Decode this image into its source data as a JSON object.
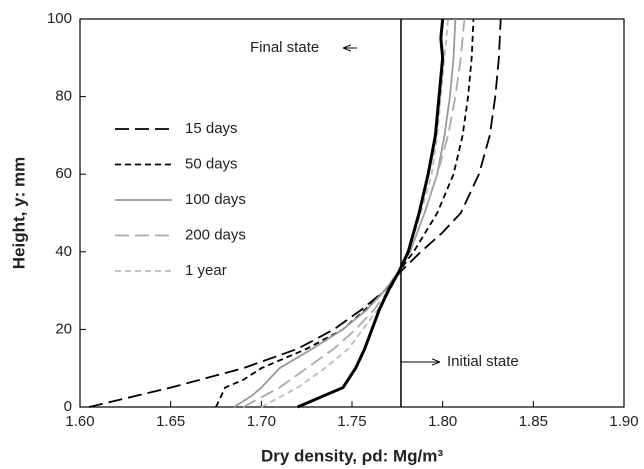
{
  "chart_data": {
    "type": "line",
    "xlabel": "Dry density, ρd: Mg/m³",
    "ylabel": "Height, y: mm",
    "xlim": [
      1.6,
      1.9
    ],
    "ylim": [
      0,
      100
    ],
    "xticks": [
      {
        "value": 1.6,
        "label": "1.60"
      },
      {
        "value": 1.65,
        "label": "1.65"
      },
      {
        "value": 1.7,
        "label": "1.70"
      },
      {
        "value": 1.75,
        "label": "1.75"
      },
      {
        "value": 1.8,
        "label": "1.80"
      },
      {
        "value": 1.85,
        "label": "1.85"
      },
      {
        "value": 1.9,
        "label": "1.90"
      }
    ],
    "yticks": [
      0,
      20,
      40,
      60,
      80,
      100
    ],
    "series": [
      {
        "name": "15 days",
        "color": "#000000",
        "dash": "long",
        "x": [
          1.605,
          1.65,
          1.69,
          1.72,
          1.74,
          1.755,
          1.768,
          1.777,
          1.788,
          1.8,
          1.81,
          1.82,
          1.826,
          1.829,
          1.831,
          1.832
        ],
        "values": [
          0,
          5,
          10,
          15,
          20,
          25,
          30,
          35,
          40,
          45,
          50,
          60,
          70,
          80,
          90,
          100
        ]
      },
      {
        "name": "50 days",
        "color": "#000000",
        "dash": "short",
        "x": [
          1.675,
          1.68,
          1.69,
          1.7,
          1.725,
          1.745,
          1.757,
          1.768,
          1.776,
          1.784,
          1.797,
          1.806,
          1.811,
          1.814,
          1.816,
          1.817
        ],
        "values": [
          0,
          5,
          7,
          10,
          15,
          20,
          25,
          30,
          35,
          40,
          50,
          60,
          70,
          80,
          90,
          100
        ]
      },
      {
        "name": "100 days",
        "color": "#999999",
        "dash": "solid",
        "x": [
          1.685,
          1.695,
          1.7,
          1.71,
          1.728,
          1.745,
          1.758,
          1.768,
          1.776,
          1.782,
          1.79,
          1.797,
          1.801,
          1.804,
          1.806,
          1.807
        ],
        "values": [
          0,
          3,
          5,
          10,
          15,
          20,
          25,
          30,
          35,
          40,
          50,
          60,
          70,
          80,
          90,
          100
        ]
      },
      {
        "name": "200 days",
        "color": "#aaaaaa",
        "dash": "long",
        "x": [
          1.69,
          1.71,
          1.725,
          1.74,
          1.752,
          1.762,
          1.77,
          1.776,
          1.782,
          1.79,
          1.797,
          1.803,
          1.807,
          1.81,
          1.812
        ],
        "values": [
          0,
          5,
          10,
          15,
          20,
          25,
          30,
          35,
          40,
          50,
          60,
          70,
          80,
          90,
          100
        ]
      },
      {
        "name": "1 year",
        "color": "#bbbbbb",
        "dash": "short",
        "x": [
          1.7,
          1.72,
          1.735,
          1.748,
          1.756,
          1.764,
          1.771,
          1.776,
          1.781,
          1.788,
          1.794,
          1.797,
          1.799,
          1.801,
          1.803
        ],
        "values": [
          0,
          5,
          10,
          15,
          20,
          25,
          30,
          35,
          40,
          50,
          60,
          70,
          80,
          90,
          100
        ]
      }
    ],
    "final_state": {
      "label": "Final state",
      "color": "#000000",
      "x": [
        1.72,
        1.73,
        1.745,
        1.752,
        1.757,
        1.761,
        1.765,
        1.77,
        1.776,
        1.781,
        1.787,
        1.792,
        1.796,
        1.798,
        1.8,
        1.799,
        1.8
      ],
      "values": [
        0,
        2,
        5,
        10,
        15,
        20,
        25,
        30,
        35,
        40,
        50,
        60,
        70,
        80,
        90,
        95,
        100
      ]
    },
    "initial_state": {
      "label": "Initial state",
      "x": 1.777
    }
  }
}
